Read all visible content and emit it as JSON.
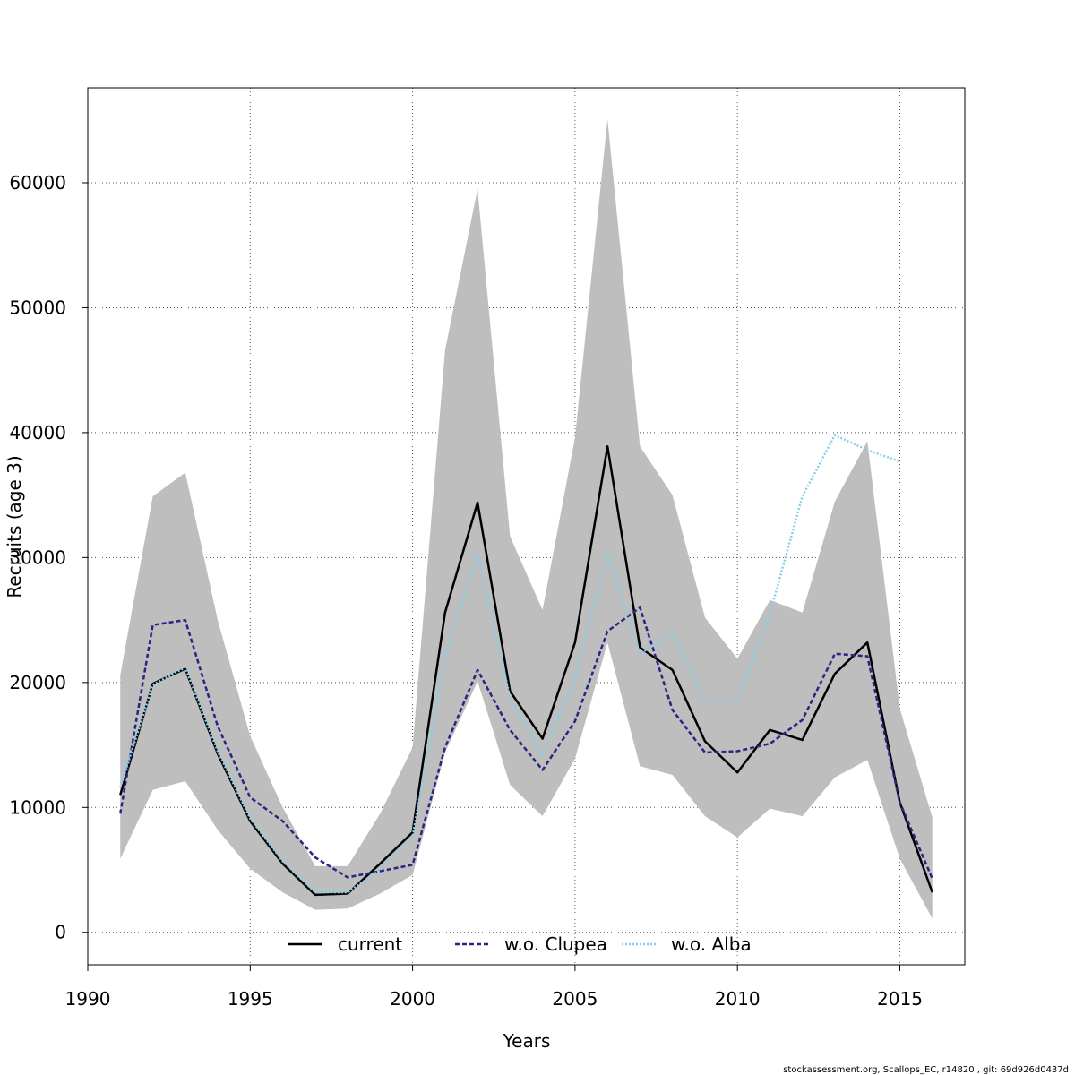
{
  "footer_text": "stockassessment.org, Scallops_EC, r14820 , git: 69d926d0437d",
  "colors": {
    "ci_band": "#bebebe",
    "current": "#000000",
    "clupea": "#2c2383",
    "alba": "#87ceeb",
    "grid": "#555555",
    "background": "#ffffff"
  },
  "chart_data": {
    "type": "line",
    "title": "",
    "xlabel": "Years",
    "ylabel": "Recruits (age 3)",
    "xlim": [
      1990,
      2017
    ],
    "ylim": [
      -2600,
      67600
    ],
    "x_ticks": [
      1990,
      1995,
      2000,
      2005,
      2010,
      2015
    ],
    "y_ticks": [
      0,
      10000,
      20000,
      30000,
      40000,
      50000,
      60000
    ],
    "grid": true,
    "legend_position": "bottom",
    "legend": [
      "current",
      "w.o. Clupea",
      "w.o. Alba"
    ],
    "confidence_band": {
      "x": [
        1991,
        1992,
        1993,
        1994,
        1995,
        1996,
        1997,
        1998,
        1999,
        2000,
        2001,
        2002,
        2003,
        2004,
        2005,
        2006,
        2007,
        2008,
        2009,
        2010,
        2011,
        2012,
        2013,
        2014,
        2015,
        2016
      ],
      "upper": [
        20600,
        34900,
        36800,
        25000,
        15700,
        10000,
        5300,
        5300,
        9500,
        14800,
        46600,
        59500,
        31700,
        25800,
        39600,
        65100,
        38900,
        35000,
        25200,
        21900,
        26600,
        25600,
        34500,
        39300,
        17900,
        9200
      ],
      "lower": [
        5900,
        11400,
        12100,
        8200,
        5100,
        3200,
        1800,
        1900,
        3100,
        4600,
        14400,
        20100,
        11800,
        9300,
        13900,
        23200,
        13300,
        12600,
        9300,
        7600,
        9900,
        9300,
        12400,
        13800,
        5900,
        1100
      ]
    },
    "series": [
      {
        "name": "current",
        "style": "solid",
        "x": [
          1991,
          1992,
          1993,
          1994,
          1995,
          1996,
          1997,
          1998,
          1999,
          2000,
          2001,
          2002,
          2003,
          2004,
          2005,
          2006,
          2007,
          2008,
          2009,
          2010,
          2011,
          2012,
          2013,
          2014,
          2015,
          2016
        ],
        "values": [
          11000,
          19900,
          21100,
          14300,
          8900,
          5500,
          3000,
          3100,
          5500,
          8000,
          25600,
          34400,
          19300,
          15500,
          23200,
          38900,
          22800,
          21000,
          15300,
          12800,
          16200,
          15400,
          20700,
          23200,
          10400,
          3200
        ]
      },
      {
        "name": "w.o. Clupea",
        "style": "dashed",
        "x": [
          1991,
          1992,
          1993,
          1994,
          1995,
          1996,
          1997,
          1998,
          1999,
          2000,
          2001,
          2002,
          2003,
          2004,
          2005,
          2006,
          2007,
          2008,
          2009,
          2010,
          2011,
          2012,
          2013,
          2014,
          2015,
          2016
        ],
        "values": [
          9500,
          24600,
          25000,
          16500,
          10800,
          8900,
          6000,
          4400,
          4900,
          5400,
          14800,
          21000,
          16200,
          13000,
          16900,
          24100,
          26000,
          17800,
          14400,
          14500,
          15100,
          17000,
          22300,
          22100,
          10400,
          4300
        ]
      },
      {
        "name": "w.o. Alba",
        "style": "dotted",
        "x": [
          1991,
          1992,
          1993,
          1994,
          1995,
          1996,
          1997,
          1998,
          1999,
          2000,
          2001,
          2002,
          2003,
          2004,
          2005,
          2006,
          2007,
          2008,
          2009,
          2010,
          2011,
          2012,
          2013,
          2014,
          2015
        ],
        "values": [
          11600,
          19800,
          21200,
          14500,
          9100,
          5700,
          3200,
          3200,
          5000,
          7700,
          22100,
          30300,
          18800,
          14200,
          20300,
          30400,
          22300,
          23900,
          18500,
          18600,
          25500,
          34900,
          39800,
          38600,
          37700
        ]
      }
    ]
  }
}
